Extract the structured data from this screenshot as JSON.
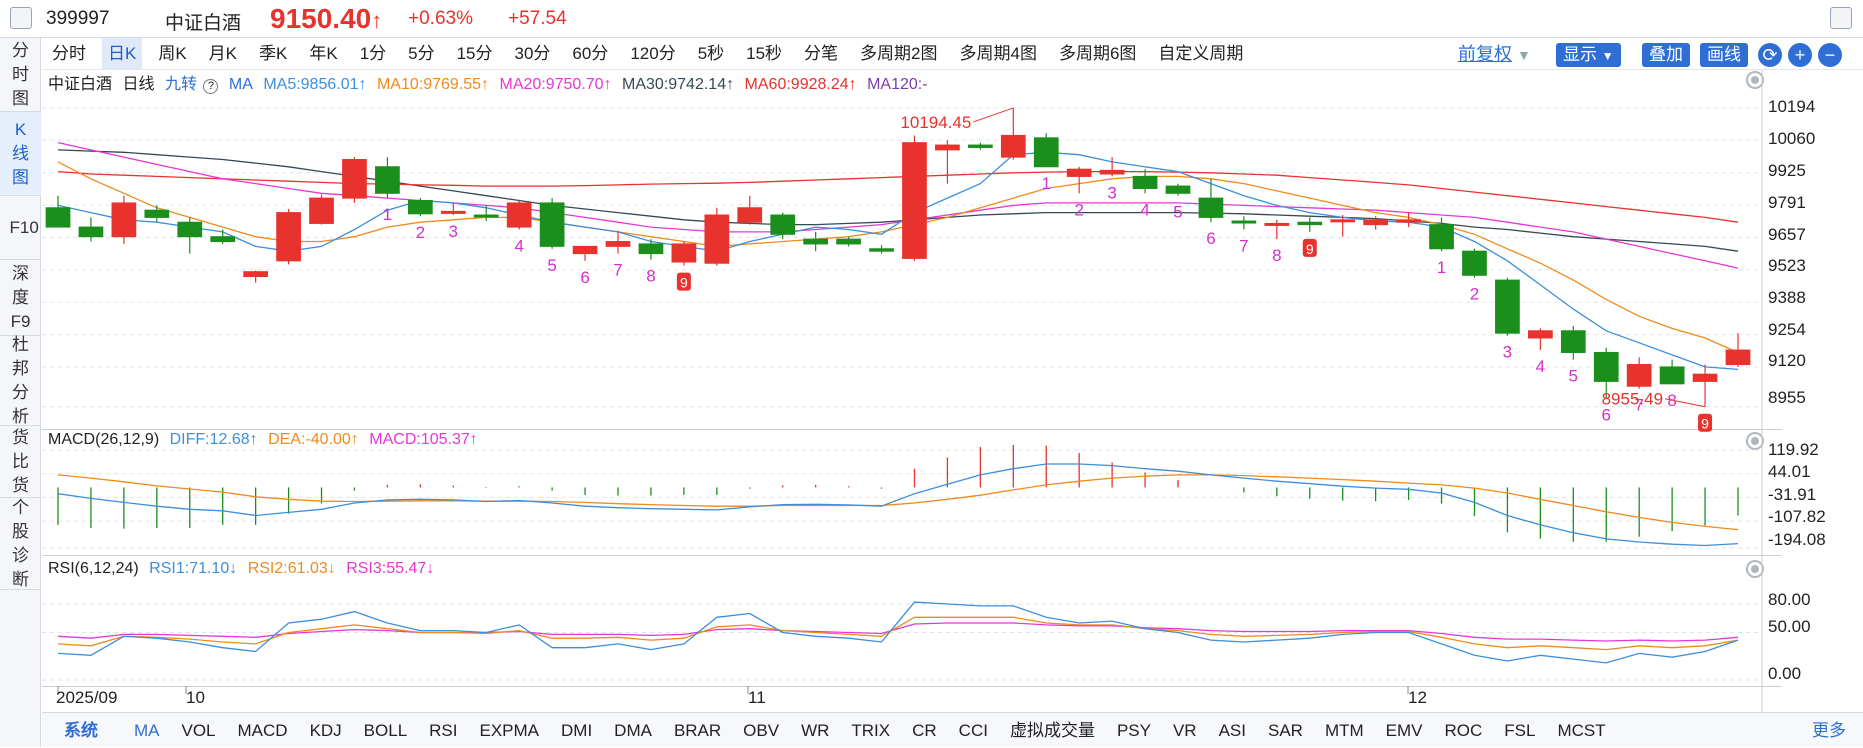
{
  "header": {
    "code": "399997",
    "name": "中证白酒",
    "price": "9150.40",
    "arrow": "↑",
    "pct": "+0.63%",
    "change": "+57.54"
  },
  "side_tabs": [
    {
      "label": "分时图",
      "active": false
    },
    {
      "label": "K线图",
      "active": true
    },
    {
      "label": "F10",
      "active": false
    },
    {
      "label": "深度F9",
      "active": false
    },
    {
      "label": "杜邦分析",
      "active": false
    },
    {
      "label": "货比货",
      "active": false
    },
    {
      "label": "个股诊断",
      "active": false
    }
  ],
  "periods": [
    "分时",
    "日K",
    "周K",
    "月K",
    "季K",
    "年K",
    "1分",
    "5分",
    "15分",
    "30分",
    "60分",
    "120分",
    "5秒",
    "15秒",
    "分笔",
    "多周期2图",
    "多周期4图",
    "多周期6图",
    "自定义周期"
  ],
  "active_period": "日K",
  "toolbar": {
    "fuquan": "前复权",
    "display": "显示",
    "overlay": "叠加",
    "draw": "画线"
  },
  "ma_legend": {
    "name": "中证白酒",
    "period": "日线",
    "indicator": "九转",
    "ma_label": "MA",
    "ma5": "MA5:9856.01↑",
    "ma10": "MA10:9769.55↑",
    "ma20": "MA20:9750.70↑",
    "ma30": "MA30:9742.14↑",
    "ma60": "MA60:9928.24↑",
    "ma120": "MA120:-"
  },
  "macd_legend": {
    "name": "MACD(26,12,9)",
    "diff": "DIFF:12.68↑",
    "dea": "DEA:-40.00↑",
    "macd": "MACD:105.37↑"
  },
  "rsi_legend": {
    "name": "RSI(6,12,24)",
    "rsi1": "RSI1:71.10↓",
    "rsi2": "RSI2:61.03↓",
    "rsi3": "RSI3:55.47↓"
  },
  "price_axis": [
    "10194",
    "10060",
    "9925",
    "9791",
    "9657",
    "9523",
    "9388",
    "9254",
    "9120",
    "8955"
  ],
  "macd_axis": [
    "119.92",
    "44.01",
    "-31.91",
    "-107.82",
    "-194.08"
  ],
  "rsi_axis": [
    "80.00",
    "50.00",
    "0.00"
  ],
  "dates": [
    "2025/09",
    "10",
    "11",
    "12"
  ],
  "annotations": {
    "high": "10194.45",
    "low": "8955.49"
  },
  "bottom_tabs": [
    "系统",
    "MA",
    "VOL",
    "MACD",
    "KDJ",
    "BOLL",
    "RSI",
    "EXPMA",
    "DMI",
    "DMA",
    "BRAR",
    "OBV",
    "WR",
    "TRIX",
    "CR",
    "CCI",
    "虚拟成交量",
    "PSY",
    "VR",
    "ASI",
    "SAR",
    "MTM",
    "EMV",
    "ROC",
    "FSL",
    "MCST"
  ],
  "more": "更多",
  "colors": {
    "up": "#e8322d",
    "down": "#1b8f1b",
    "ma5": "#3c8fdc",
    "ma10": "#f08a1c",
    "ma20": "#e637d6",
    "ma30": "#334a52",
    "ma60": "#e8322d",
    "macd_diff": "#3c8fdc",
    "macd_dea": "#f08a1c",
    "accent": "#2f6fd5"
  },
  "chart_data": {
    "type": "candlestick",
    "ylim": [
      8900,
      10260
    ],
    "candles": [
      {
        "o": 9780,
        "h": 9830,
        "l": 9700,
        "c": 9700
      },
      {
        "o": 9700,
        "h": 9740,
        "l": 9640,
        "c": 9660
      },
      {
        "o": 9660,
        "h": 9830,
        "l": 9630,
        "c": 9800
      },
      {
        "o": 9770,
        "h": 9790,
        "l": 9720,
        "c": 9740
      },
      {
        "o": 9720,
        "h": 9740,
        "l": 9590,
        "c": 9660
      },
      {
        "o": 9660,
        "h": 9690,
        "l": 9630,
        "c": 9640
      },
      {
        "o": 9495,
        "h": 9520,
        "l": 9470,
        "c": 9515
      },
      {
        "o": 9560,
        "h": 9775,
        "l": 9545,
        "c": 9760
      },
      {
        "o": 9715,
        "h": 9835,
        "l": 9710,
        "c": 9820
      },
      {
        "o": 9820,
        "h": 9990,
        "l": 9800,
        "c": 9980
      },
      {
        "o": 9950,
        "h": 9990,
        "l": 9820,
        "c": 9840
      },
      {
        "o": 9810,
        "h": 9820,
        "l": 9745,
        "c": 9755
      },
      {
        "o": 9765,
        "h": 9800,
        "l": 9750,
        "c": 9765
      },
      {
        "o": 9750,
        "h": 9790,
        "l": 9725,
        "c": 9745
      },
      {
        "o": 9700,
        "h": 9810,
        "l": 9690,
        "c": 9800
      },
      {
        "o": 9800,
        "h": 9820,
        "l": 9610,
        "c": 9620
      },
      {
        "o": 9590,
        "h": 9620,
        "l": 9560,
        "c": 9620
      },
      {
        "o": 9620,
        "h": 9685,
        "l": 9590,
        "c": 9640
      },
      {
        "o": 9630,
        "h": 9650,
        "l": 9565,
        "c": 9590
      },
      {
        "o": 9555,
        "h": 9640,
        "l": 9540,
        "c": 9630
      },
      {
        "o": 9550,
        "h": 9780,
        "l": 9540,
        "c": 9750
      },
      {
        "o": 9720,
        "h": 9830,
        "l": 9710,
        "c": 9780
      },
      {
        "o": 9750,
        "h": 9760,
        "l": 9650,
        "c": 9670
      },
      {
        "o": 9650,
        "h": 9680,
        "l": 9600,
        "c": 9630
      },
      {
        "o": 9650,
        "h": 9660,
        "l": 9620,
        "c": 9630
      },
      {
        "o": 9610,
        "h": 9625,
        "l": 9590,
        "c": 9600
      },
      {
        "o": 9570,
        "h": 10080,
        "l": 9560,
        "c": 10050
      },
      {
        "o": 10020,
        "h": 10060,
        "l": 9880,
        "c": 10040
      },
      {
        "o": 10040,
        "h": 10050,
        "l": 10020,
        "c": 10030
      },
      {
        "o": 9990,
        "h": 10194,
        "l": 9980,
        "c": 10080
      },
      {
        "o": 10070,
        "h": 10090,
        "l": 9950,
        "c": 9950
      },
      {
        "o": 9910,
        "h": 9950,
        "l": 9840,
        "c": 9940
      },
      {
        "o": 9920,
        "h": 9990,
        "l": 9910,
        "c": 9935
      },
      {
        "o": 9910,
        "h": 9940,
        "l": 9840,
        "c": 9860
      },
      {
        "o": 9870,
        "h": 9880,
        "l": 9830,
        "c": 9840
      },
      {
        "o": 9820,
        "h": 9900,
        "l": 9720,
        "c": 9740
      },
      {
        "o": 9725,
        "h": 9745,
        "l": 9690,
        "c": 9720
      },
      {
        "o": 9715,
        "h": 9730,
        "l": 9650,
        "c": 9715
      },
      {
        "o": 9720,
        "h": 9740,
        "l": 9680,
        "c": 9710
      },
      {
        "o": 9725,
        "h": 9750,
        "l": 9660,
        "c": 9730
      },
      {
        "o": 9710,
        "h": 9745,
        "l": 9690,
        "c": 9730
      },
      {
        "o": 9720,
        "h": 9760,
        "l": 9700,
        "c": 9730
      },
      {
        "o": 9710,
        "h": 9740,
        "l": 9600,
        "c": 9610
      },
      {
        "o": 9600,
        "h": 9610,
        "l": 9490,
        "c": 9500
      },
      {
        "o": 9480,
        "h": 9490,
        "l": 9250,
        "c": 9260
      },
      {
        "o": 9240,
        "h": 9280,
        "l": 9190,
        "c": 9270
      },
      {
        "o": 9270,
        "h": 9290,
        "l": 9150,
        "c": 9180
      },
      {
        "o": 9180,
        "h": 9200,
        "l": 8990,
        "c": 9060
      },
      {
        "o": 9040,
        "h": 9160,
        "l": 9030,
        "c": 9130
      },
      {
        "o": 9120,
        "h": 9150,
        "l": 9050,
        "c": 9050
      },
      {
        "o": 9060,
        "h": 9130,
        "l": 8955,
        "c": 9090
      },
      {
        "o": 9130,
        "h": 9260,
        "l": 9120,
        "c": 9190
      }
    ],
    "ma5": [
      9790,
      9760,
      9730,
      9720,
      9700,
      9680,
      9620,
      9600,
      9620,
      9690,
      9770,
      9810,
      9800,
      9780,
      9750,
      9720,
      9700,
      9680,
      9640,
      9620,
      9600,
      9640,
      9670,
      9700,
      9690,
      9670,
      9760,
      9820,
      9880,
      10000,
      10010,
      10000,
      9970,
      9950,
      9930,
      9880,
      9830,
      9790,
      9760,
      9740,
      9725,
      9720,
      9700,
      9640,
      9560,
      9460,
      9360,
      9270,
      9220,
      9170,
      9120,
      9110
    ],
    "ma10": [
      9970,
      9900,
      9840,
      9780,
      9740,
      9700,
      9660,
      9640,
      9640,
      9660,
      9700,
      9720,
      9730,
      9740,
      9740,
      9720,
      9700,
      9680,
      9660,
      9640,
      9620,
      9630,
      9640,
      9650,
      9660,
      9680,
      9710,
      9740,
      9780,
      9820,
      9860,
      9880,
      9900,
      9910,
      9910,
      9900,
      9880,
      9850,
      9820,
      9790,
      9760,
      9740,
      9710,
      9670,
      9610,
      9550,
      9480,
      9400,
      9330,
      9280,
      9240,
      9180
    ],
    "ma20": [
      10050,
      10020,
      9990,
      9960,
      9930,
      9900,
      9880,
      9860,
      9840,
      9830,
      9820,
      9810,
      9800,
      9790,
      9780,
      9760,
      9740,
      9720,
      9700,
      9690,
      9680,
      9680,
      9680,
      9690,
      9700,
      9710,
      9730,
      9750,
      9770,
      9790,
      9800,
      9800,
      9800,
      9800,
      9800,
      9795,
      9790,
      9785,
      9780,
      9775,
      9770,
      9760,
      9750,
      9740,
      9720,
      9700,
      9680,
      9650,
      9620,
      9590,
      9560,
      9530
    ],
    "ma30": [
      10020,
      10015,
      10010,
      10000,
      9990,
      9980,
      9965,
      9950,
      9930,
      9910,
      9890,
      9870,
      9850,
      9830,
      9810,
      9790,
      9775,
      9760,
      9745,
      9730,
      9720,
      9715,
      9710,
      9710,
      9715,
      9720,
      9730,
      9740,
      9750,
      9755,
      9760,
      9760,
      9760,
      9760,
      9760,
      9758,
      9755,
      9750,
      9745,
      9740,
      9735,
      9725,
      9715,
      9700,
      9690,
      9675,
      9660,
      9650,
      9640,
      9630,
      9620,
      9600
    ],
    "ma60": [
      9930,
      9920,
      9915,
      9910,
      9905,
      9900,
      9895,
      9890,
      9885,
      9880,
      9878,
      9875,
      9873,
      9870,
      9870,
      9870,
      9872,
      9875,
      9878,
      9880,
      9882,
      9885,
      9890,
      9895,
      9900,
      9905,
      9910,
      9915,
      9920,
      9925,
      9928,
      9930,
      9930,
      9930,
      9928,
      9925,
      9920,
      9915,
      9905,
      9895,
      9885,
      9875,
      9860,
      9845,
      9830,
      9815,
      9800,
      9785,
      9770,
      9755,
      9740,
      9720
    ],
    "dif": [
      -20,
      -35,
      -48,
      -60,
      -70,
      -75,
      -90,
      -80,
      -70,
      -50,
      -40,
      -38,
      -40,
      -45,
      -42,
      -50,
      -60,
      -65,
      -68,
      -70,
      -72,
      -62,
      -55,
      -54,
      -56,
      -60,
      -20,
      10,
      40,
      60,
      75,
      75,
      70,
      60,
      52,
      40,
      30,
      20,
      12,
      4,
      -2,
      -6,
      -18,
      -48,
      -90,
      -120,
      -145,
      -165,
      -175,
      -182,
      -186,
      -180
    ],
    "dea": [
      40,
      30,
      18,
      5,
      -5,
      -15,
      -30,
      -38,
      -44,
      -45,
      -44,
      -43,
      -43,
      -44,
      -44,
      -45,
      -48,
      -52,
      -55,
      -58,
      -60,
      -60,
      -58,
      -58,
      -58,
      -58,
      -50,
      -38,
      -25,
      -8,
      8,
      20,
      30,
      36,
      40,
      40,
      38,
      34,
      30,
      25,
      20,
      14,
      8,
      -2,
      -18,
      -38,
      -58,
      -78,
      -96,
      -112,
      -125,
      -135
    ],
    "rsi1": [
      28,
      26,
      46,
      44,
      40,
      34,
      30,
      60,
      64,
      72,
      60,
      52,
      52,
      50,
      58,
      34,
      34,
      38,
      32,
      38,
      66,
      70,
      50,
      46,
      44,
      40,
      82,
      80,
      78,
      78,
      66,
      60,
      62,
      54,
      50,
      42,
      40,
      42,
      44,
      48,
      50,
      50,
      38,
      26,
      20,
      26,
      22,
      18,
      28,
      24,
      30,
      42
    ],
    "rsi2": [
      38,
      36,
      46,
      45,
      43,
      40,
      38,
      50,
      54,
      58,
      54,
      50,
      50,
      49,
      52,
      44,
      44,
      45,
      42,
      44,
      56,
      58,
      52,
      50,
      48,
      46,
      66,
      66,
      66,
      66,
      60,
      58,
      58,
      54,
      52,
      48,
      46,
      47,
      48,
      50,
      51,
      51,
      45,
      38,
      34,
      36,
      34,
      32,
      36,
      34,
      36,
      42
    ],
    "rsi3": [
      46,
      44,
      48,
      48,
      47,
      46,
      45,
      49,
      51,
      53,
      52,
      50,
      50,
      50,
      51,
      48,
      48,
      48,
      47,
      48,
      53,
      54,
      52,
      51,
      50,
      49,
      59,
      60,
      60,
      60,
      58,
      57,
      57,
      55,
      54,
      52,
      51,
      51,
      51,
      52,
      52,
      52,
      49,
      45,
      43,
      43,
      42,
      41,
      42,
      41,
      42,
      45
    ],
    "td_up": [
      {
        "i": 10,
        "n": "1"
      },
      {
        "i": 11,
        "n": "2"
      },
      {
        "i": 12,
        "n": "3"
      },
      {
        "i": 14,
        "n": "4"
      },
      {
        "i": 15,
        "n": "5"
      },
      {
        "i": 16,
        "n": "6"
      },
      {
        "i": 17,
        "n": "7"
      },
      {
        "i": 18,
        "n": "8"
      },
      {
        "i": 19,
        "n": "9",
        "box": true
      }
    ],
    "td_up2": [
      {
        "i": 30,
        "n": "1"
      },
      {
        "i": 31,
        "n": "2"
      },
      {
        "i": 32,
        "n": "3"
      },
      {
        "i": 33,
        "n": "4"
      },
      {
        "i": 34,
        "n": "5"
      }
    ],
    "td_down": [
      {
        "i": 35,
        "n": "6"
      },
      {
        "i": 36,
        "n": "7"
      },
      {
        "i": 37,
        "n": "8"
      },
      {
        "i": 38,
        "n": "9",
        "box": true
      },
      {
        "i": 42,
        "n": "1"
      },
      {
        "i": 43,
        "n": "2"
      },
      {
        "i": 44,
        "n": "3"
      },
      {
        "i": 45,
        "n": "4"
      },
      {
        "i": 46,
        "n": "5"
      },
      {
        "i": 47,
        "n": "6"
      },
      {
        "i": 48,
        "n": "7"
      },
      {
        "i": 49,
        "n": "8"
      },
      {
        "i": 50,
        "n": "9",
        "box": true
      }
    ]
  }
}
